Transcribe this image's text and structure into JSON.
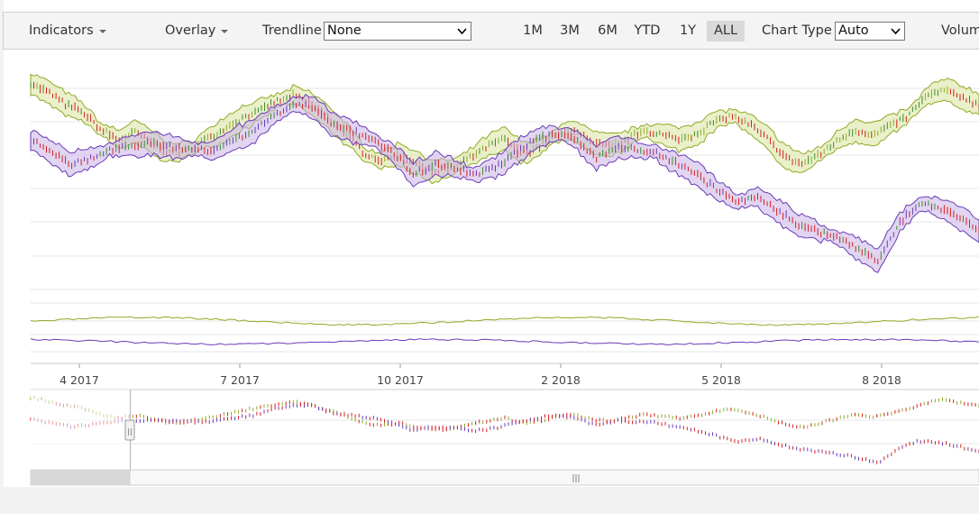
{
  "toolbar": {
    "indicators_label": "Indicators",
    "overlay_label": "Overlay",
    "trendline_label": "Trendline",
    "trendline_value": "None",
    "range_buttons": [
      "1M",
      "3M",
      "6M",
      "YTD",
      "1Y",
      "ALL"
    ],
    "active_range": "ALL",
    "chart_type_label": "Chart Type",
    "chart_type_value": "Auto",
    "volume_label": "Volum"
  },
  "x_axis": {
    "tick_labels": [
      "4 2017",
      "7 2017",
      "10 2017",
      "2 2018",
      "5 2018",
      "8 2018"
    ]
  },
  "navigator": {
    "grip_symbol": "|||",
    "handle_symbol": "||"
  },
  "colors": {
    "series_green": "#8faa24",
    "series_purple": "#6a3ab8",
    "band_green_fill": "#d7e39f",
    "band_purple_fill": "#c8b2e6",
    "candle_up": "#3b8d2a",
    "candle_down": "#d42020"
  },
  "chart_data": {
    "type": "line",
    "series": [
      {
        "values": [
          0.95,
          0.88,
          0.8,
          0.74,
          0.62,
          0.55,
          0.6,
          0.52,
          0.45,
          0.48,
          0.55,
          0.62,
          0.7,
          0.75,
          0.82,
          0.86,
          0.8,
          0.7,
          0.58,
          0.45,
          0.4,
          0.45,
          0.38,
          0.32,
          0.35,
          0.42,
          0.5,
          0.55,
          0.45,
          0.5,
          0.58,
          0.62,
          0.52,
          0.5,
          0.55,
          0.62,
          0.58,
          0.55,
          0.6,
          0.68,
          0.72,
          0.65,
          0.55,
          0.42,
          0.38,
          0.45,
          0.55,
          0.62,
          0.58,
          0.65,
          0.72,
          0.85,
          0.9,
          0.85,
          0.8
        ]
      },
      {
        "values": [
          0.55,
          0.45,
          0.38,
          0.42,
          0.48,
          0.5,
          0.52,
          0.5,
          0.47,
          0.48,
          0.55,
          0.6,
          0.72,
          0.8,
          0.78,
          0.65,
          0.6,
          0.55,
          0.45,
          0.3,
          0.38,
          0.35,
          0.3,
          0.35,
          0.45,
          0.55,
          0.6,
          0.55,
          0.42,
          0.5,
          0.48,
          0.46,
          0.38,
          0.3,
          0.2,
          0.1,
          0.15,
          0.05,
          -0.05,
          -0.1,
          -0.15,
          -0.22,
          -0.32,
          -0.05,
          0.1,
          0.08,
          0.0,
          -0.1
        ]
      }
    ]
  }
}
